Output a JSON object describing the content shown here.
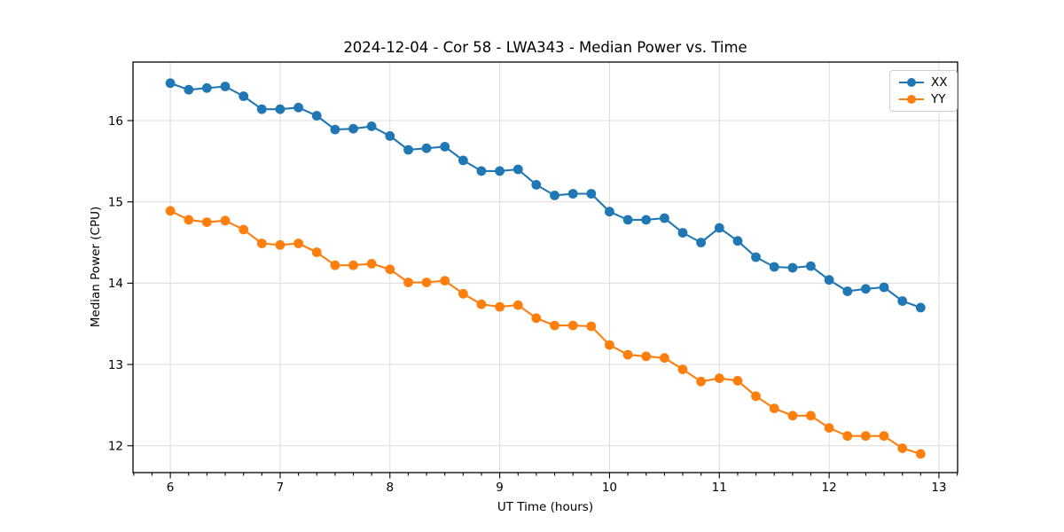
{
  "chart_data": {
    "type": "line",
    "title": "2024-12-04 - Cor 58 - LWA343 - Median Power vs. Time",
    "xlabel": "UT Time (hours)",
    "ylabel": "Median Power (CPU)",
    "xlim": [
      5.66,
      13.17
    ],
    "ylim": [
      11.67,
      16.72
    ],
    "x_ticks": [
      6,
      7,
      8,
      9,
      10,
      11,
      12,
      13
    ],
    "y_ticks": [
      12,
      13,
      14,
      15,
      16
    ],
    "x_minor_step": 0.16667,
    "grid": true,
    "grid_color": "#dcdcdc",
    "spine_color": "#000000",
    "legend_position": "upper right",
    "marker": "circle",
    "x": [
      6.0,
      6.167,
      6.333,
      6.5,
      6.667,
      6.833,
      7.0,
      7.167,
      7.333,
      7.5,
      7.667,
      7.833,
      8.0,
      8.167,
      8.333,
      8.5,
      8.667,
      8.833,
      9.0,
      9.167,
      9.333,
      9.5,
      9.667,
      9.833,
      10.0,
      10.167,
      10.333,
      10.5,
      10.667,
      10.833,
      11.0,
      11.167,
      11.333,
      11.5,
      11.667,
      11.833,
      12.0,
      12.167,
      12.333,
      12.5,
      12.667,
      12.833
    ],
    "series": [
      {
        "name": "XX",
        "color": "#1f77b4",
        "values": [
          16.46,
          16.38,
          16.4,
          16.42,
          16.3,
          16.14,
          16.14,
          16.16,
          16.06,
          15.89,
          15.9,
          15.93,
          15.81,
          15.64,
          15.66,
          15.68,
          15.51,
          15.38,
          15.38,
          15.4,
          15.21,
          15.08,
          15.1,
          15.1,
          14.88,
          14.78,
          14.78,
          14.8,
          14.62,
          14.5,
          14.68,
          14.52,
          14.32,
          14.2,
          14.19,
          14.21,
          14.04,
          13.9,
          13.93,
          13.95,
          13.78,
          13.7
        ]
      },
      {
        "name": "YY",
        "color": "#ff7f0e",
        "values": [
          14.89,
          14.78,
          14.75,
          14.77,
          14.66,
          14.49,
          14.47,
          14.49,
          14.38,
          14.22,
          14.22,
          14.24,
          14.17,
          14.01,
          14.01,
          14.03,
          13.87,
          13.74,
          13.71,
          13.73,
          13.57,
          13.48,
          13.48,
          13.47,
          13.24,
          13.12,
          13.1,
          13.08,
          12.94,
          12.79,
          12.83,
          12.8,
          12.61,
          12.46,
          12.37,
          12.37,
          12.22,
          12.12,
          12.12,
          12.12,
          11.97,
          11.9
        ]
      }
    ]
  }
}
